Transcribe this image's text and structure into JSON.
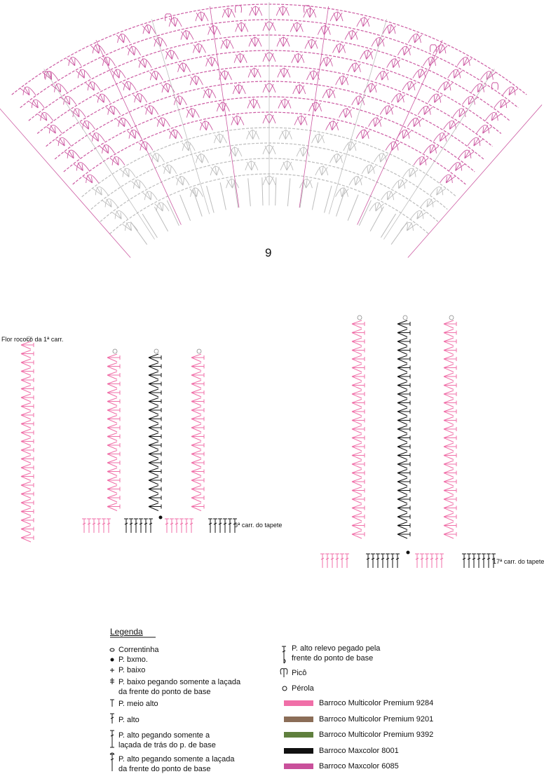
{
  "figure_number": "9",
  "annotations": {
    "flower_label": "Flor rococó da 1ª carr.",
    "row6_label": "6ª carr. do tapete",
    "row17_label": "17ª carr. do tapete"
  },
  "legend": {
    "title": "Legenda",
    "symbols": [
      [
        "Correntinha"
      ],
      [
        "P. bxmo."
      ],
      [
        "P. baixo"
      ],
      [
        "P. baixo pegando somente a laçada",
        "da frente do ponto de base"
      ],
      [
        "P. meio alto"
      ],
      [
        "P. alto"
      ],
      [
        "P. alto pegando somente a",
        "laçada de trás do p. de base"
      ],
      [
        "P. alto pegando somente a laçada",
        "da frente do ponto de base"
      ],
      [
        "P. alto relevo pegado pela",
        "frente do ponto de base"
      ],
      [
        "Picô"
      ],
      [
        "Pérola"
      ]
    ],
    "yarns": [
      {
        "name": "Barroco Multicolor Premium 9284",
        "color": "#f06fa8"
      },
      {
        "name": "Barroco Multicolor Premium 9201",
        "color": "#8b6d57"
      },
      {
        "name": "Barroco Multicolor Premium 9392",
        "color": "#5f7f3d"
      },
      {
        "name": "Barroco Maxcolor 8001",
        "color": "#111111"
      },
      {
        "name": "Barroco Maxcolor 6085",
        "color": "#c9509b"
      }
    ]
  }
}
